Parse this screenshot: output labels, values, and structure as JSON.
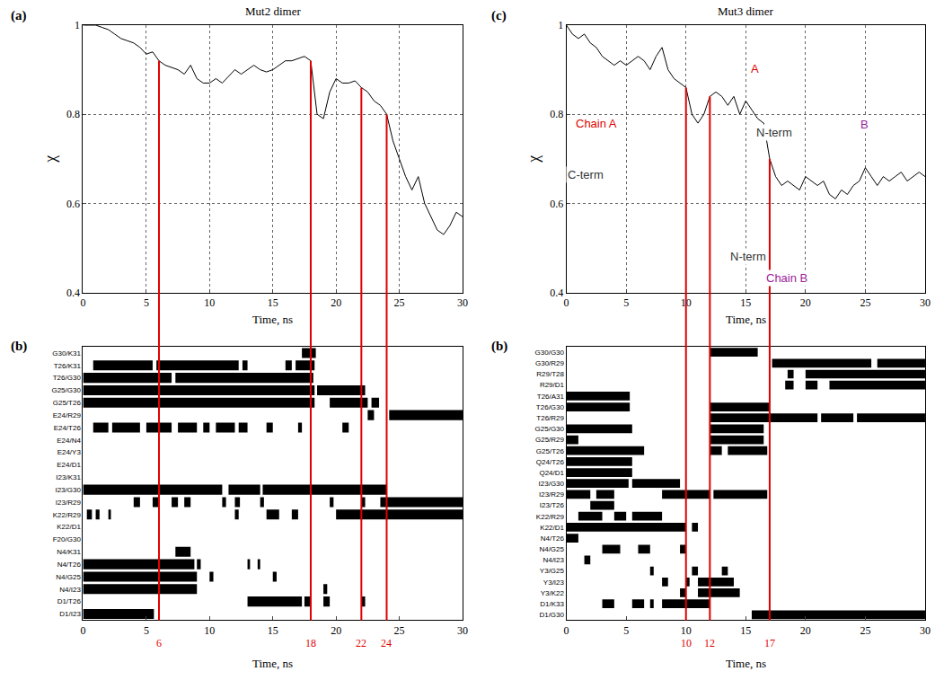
{
  "chart_data": [
    {
      "type": "line",
      "panel": "(a)",
      "title": "Mut2 dimer",
      "x_label": "Time, ns",
      "y_label": "χ",
      "x": [
        0,
        0.5,
        1,
        1.5,
        2,
        2.5,
        3,
        3.5,
        4,
        4.5,
        5,
        5.5,
        6,
        6.5,
        7,
        7.5,
        8,
        8.5,
        9,
        9.5,
        10,
        10.5,
        11,
        11.5,
        12,
        12.5,
        13,
        13.5,
        14,
        14.5,
        15,
        15.5,
        16,
        16.5,
        17,
        17.5,
        18,
        18.5,
        19,
        19.5,
        20,
        20.5,
        21,
        21.5,
        22,
        22.5,
        23,
        23.5,
        24,
        24.5,
        25,
        25.5,
        26,
        26.5,
        27,
        27.5,
        28,
        28.5,
        29,
        29.5,
        30
      ],
      "values": [
        1.0,
        1.0,
        1.0,
        0.995,
        0.99,
        0.98,
        0.97,
        0.965,
        0.96,
        0.95,
        0.935,
        0.94,
        0.92,
        0.91,
        0.905,
        0.9,
        0.89,
        0.91,
        0.88,
        0.87,
        0.87,
        0.88,
        0.87,
        0.885,
        0.9,
        0.89,
        0.9,
        0.91,
        0.9,
        0.895,
        0.9,
        0.91,
        0.92,
        0.92,
        0.925,
        0.93,
        0.92,
        0.8,
        0.79,
        0.85,
        0.88,
        0.87,
        0.87,
        0.875,
        0.86,
        0.85,
        0.83,
        0.82,
        0.8,
        0.74,
        0.7,
        0.66,
        0.63,
        0.66,
        0.6,
        0.57,
        0.54,
        0.53,
        0.55,
        0.58,
        0.57
      ],
      "color": "#000000",
      "xlim": [
        0,
        30
      ],
      "xticks": [
        0,
        5,
        10,
        15,
        20,
        25,
        30
      ],
      "ylim": [
        0.4,
        1
      ],
      "yticks": [
        0.4,
        0.6,
        0.8,
        1
      ],
      "grid": true
    },
    {
      "type": "timeline",
      "panel": "(b)",
      "x_label": "Time, ns",
      "color": "#000000",
      "xlim": [
        0,
        30
      ],
      "xticks": [
        0,
        5,
        10,
        15,
        20,
        25,
        30
      ],
      "markers": {
        "values": [
          6,
          18,
          22,
          24
        ],
        "color": "#e00000"
      },
      "rows": [
        {
          "label": "G30/K31",
          "intervals": [
            [
              17.3,
              18.4
            ]
          ]
        },
        {
          "label": "T26/K31",
          "intervals": [
            [
              0.8,
              5.5
            ],
            [
              5.8,
              12.3
            ],
            [
              12.6,
              13
            ],
            [
              16,
              16.5
            ],
            [
              16.8,
              18.3
            ]
          ]
        },
        {
          "label": "T26/G30",
          "intervals": [
            [
              0,
              7
            ],
            [
              7.3,
              18.2
            ]
          ]
        },
        {
          "label": "G25/G30",
          "intervals": [
            [
              0,
              18.3
            ],
            [
              18.5,
              22.3
            ]
          ]
        },
        {
          "label": "G25/T26",
          "intervals": [
            [
              0,
              18.3
            ],
            [
              19.5,
              22.5
            ],
            [
              22.8,
              23.4
            ]
          ]
        },
        {
          "label": "E24/R29",
          "intervals": [
            [
              22.5,
              23
            ],
            [
              24.2,
              30
            ]
          ]
        },
        {
          "label": "E24/T26",
          "intervals": [
            [
              0.8,
              2
            ],
            [
              2.3,
              4.5
            ],
            [
              5,
              7
            ],
            [
              7.5,
              9
            ],
            [
              9.5,
              10
            ],
            [
              10.5,
              12
            ],
            [
              12.3,
              13
            ],
            [
              14.5,
              15
            ],
            [
              17,
              17.3
            ],
            [
              20.5,
              21
            ]
          ]
        },
        {
          "label": "E24/N4",
          "intervals": []
        },
        {
          "label": "E24/Y3",
          "intervals": []
        },
        {
          "label": "E24/D1",
          "intervals": []
        },
        {
          "label": "I23/K31",
          "intervals": []
        },
        {
          "label": "I23/G30",
          "intervals": [
            [
              0,
              11
            ],
            [
              11.5,
              14
            ],
            [
              14.2,
              24
            ]
          ]
        },
        {
          "label": "I23/R29",
          "intervals": [
            [
              4,
              4.5
            ],
            [
              5.5,
              6
            ],
            [
              7,
              7.5
            ],
            [
              8,
              8.5
            ],
            [
              11,
              11.3
            ],
            [
              12,
              12.4
            ],
            [
              14,
              14.3
            ],
            [
              19.5,
              19.8
            ],
            [
              22,
              22.3
            ],
            [
              23.5,
              30
            ]
          ]
        },
        {
          "label": "K22/R29",
          "intervals": [
            [
              0.3,
              0.7
            ],
            [
              1,
              1.3
            ],
            [
              2,
              2.2
            ],
            [
              12,
              12.3
            ],
            [
              14.5,
              15.5
            ],
            [
              16.5,
              17
            ],
            [
              20,
              30
            ]
          ]
        },
        {
          "label": "K22/D1",
          "intervals": []
        },
        {
          "label": "F20/G30",
          "intervals": []
        },
        {
          "label": "N4/K31",
          "intervals": [
            [
              7.3,
              8.5
            ]
          ]
        },
        {
          "label": "N4/T26",
          "intervals": [
            [
              0,
              8.8
            ],
            [
              9,
              9.3
            ],
            [
              13,
              13.2
            ],
            [
              13.8,
              14
            ]
          ]
        },
        {
          "label": "N4/G25",
          "intervals": [
            [
              0,
              9
            ],
            [
              10,
              10.3
            ],
            [
              15,
              15.3
            ]
          ]
        },
        {
          "label": "N4/I23",
          "intervals": [
            [
              0,
              9
            ],
            [
              19,
              19.3
            ]
          ]
        },
        {
          "label": "D1/T26",
          "intervals": [
            [
              13,
              17.3
            ],
            [
              17.5,
              18
            ],
            [
              19,
              19.5
            ],
            [
              22,
              22.3
            ]
          ]
        },
        {
          "label": "D1/I23",
          "intervals": [
            [
              0,
              5.6
            ]
          ]
        }
      ]
    },
    {
      "type": "line",
      "panel": "(c)",
      "title": "Mut3 dimer",
      "x_label": "Time, ns",
      "y_label": "χ",
      "x": [
        0,
        0.5,
        1,
        1.5,
        2,
        2.5,
        3,
        3.5,
        4,
        4.5,
        5,
        5.5,
        6,
        6.5,
        7,
        7.5,
        8,
        8.5,
        9,
        9.5,
        10,
        10.5,
        11,
        11.5,
        12,
        12.5,
        13,
        13.5,
        14,
        14.5,
        15,
        15.5,
        16,
        16.5,
        17,
        17.5,
        18,
        18.5,
        19,
        19.5,
        20,
        20.5,
        21,
        21.5,
        22,
        22.5,
        23,
        23.5,
        24,
        24.5,
        25,
        25.5,
        26,
        26.5,
        27,
        27.5,
        28,
        28.5,
        29,
        29.5,
        30
      ],
      "values": [
        1.0,
        0.98,
        0.97,
        0.98,
        0.96,
        0.95,
        0.93,
        0.92,
        0.91,
        0.92,
        0.91,
        0.92,
        0.93,
        0.92,
        0.9,
        0.93,
        0.95,
        0.9,
        0.88,
        0.87,
        0.86,
        0.8,
        0.78,
        0.8,
        0.84,
        0.85,
        0.84,
        0.82,
        0.84,
        0.8,
        0.83,
        0.81,
        0.79,
        0.78,
        0.7,
        0.66,
        0.64,
        0.65,
        0.64,
        0.63,
        0.66,
        0.65,
        0.64,
        0.65,
        0.62,
        0.61,
        0.63,
        0.62,
        0.64,
        0.65,
        0.68,
        0.66,
        0.64,
        0.66,
        0.65,
        0.66,
        0.67,
        0.65,
        0.66,
        0.67,
        0.66
      ],
      "color": "#000000",
      "xlim": [
        0,
        30
      ],
      "xticks": [
        0,
        5,
        10,
        15,
        20,
        25,
        30
      ],
      "ylim": [
        0.4,
        1
      ],
      "yticks": [
        0.4,
        0.6,
        0.8,
        1
      ],
      "grid": true,
      "annotations": [
        {
          "text": "A",
          "x": 15.8,
          "y": 0.903,
          "color": "#e00000"
        },
        {
          "text": "B",
          "x": 24.9,
          "y": 0.777,
          "color": "#9b1c9b"
        },
        {
          "text": "N-term",
          "x": 17.4,
          "y": 0.76,
          "color": "#333333"
        },
        {
          "text": "Chain A",
          "x": 2.5,
          "y": 0.78,
          "color": "#e00000"
        },
        {
          "text": "C-term",
          "x": 1.6,
          "y": 0.665,
          "color": "#333333"
        },
        {
          "text": "N-term",
          "x": 15.2,
          "y": 0.48,
          "color": "#333333"
        },
        {
          "text": "Chain B",
          "x": 18.4,
          "y": 0.433,
          "color": "#9b1c9b"
        }
      ]
    },
    {
      "type": "timeline",
      "panel": "(b)",
      "x_label": "Time, ns",
      "color": "#000000",
      "xlim": [
        0,
        30
      ],
      "xticks": [
        0,
        5,
        10,
        15,
        20,
        25,
        30
      ],
      "markers": {
        "values": [
          10,
          12,
          17
        ],
        "color": "#e00000"
      },
      "rows": [
        {
          "label": "G30/G30",
          "intervals": [
            [
              12,
              16
            ]
          ]
        },
        {
          "label": "G30/R29",
          "intervals": [
            [
              17.2,
              25.5
            ],
            [
              26,
              30
            ]
          ]
        },
        {
          "label": "R29/T28",
          "intervals": [
            [
              18.5,
              19
            ],
            [
              20,
              30
            ]
          ]
        },
        {
          "label": "R29/D1",
          "intervals": [
            [
              18.3,
              19
            ],
            [
              20,
              21
            ],
            [
              22,
              30
            ]
          ]
        },
        {
          "label": "T26/A31",
          "intervals": [
            [
              0,
              5.3
            ]
          ]
        },
        {
          "label": "T26/G30",
          "intervals": [
            [
              0,
              5.3
            ],
            [
              12,
              17
            ]
          ]
        },
        {
          "label": "T26/R29",
          "intervals": [
            [
              12,
              21
            ],
            [
              21.3,
              24
            ],
            [
              24.3,
              30
            ]
          ]
        },
        {
          "label": "G25/G30",
          "intervals": [
            [
              0,
              5.5
            ],
            [
              12,
              16.5
            ]
          ]
        },
        {
          "label": "G25/R29",
          "intervals": [
            [
              0,
              1
            ],
            [
              12,
              16.5
            ]
          ]
        },
        {
          "label": "G25/T26",
          "intervals": [
            [
              0,
              6.5
            ],
            [
              12,
              13
            ],
            [
              13.5,
              16.8
            ]
          ]
        },
        {
          "label": "Q24/T26",
          "intervals": [
            [
              0,
              5.5
            ]
          ]
        },
        {
          "label": "Q24/D1",
          "intervals": [
            [
              0,
              5.5
            ]
          ]
        },
        {
          "label": "I23/G30",
          "intervals": [
            [
              0,
              5.2
            ],
            [
              5.5,
              9.5
            ]
          ]
        },
        {
          "label": "I23/R29",
          "intervals": [
            [
              0,
              2
            ],
            [
              2.5,
              4
            ],
            [
              8,
              12
            ],
            [
              12.3,
              16.8
            ]
          ]
        },
        {
          "label": "I23/T26",
          "intervals": [
            [
              2,
              4
            ]
          ]
        },
        {
          "label": "K22/R29",
          "intervals": [
            [
              1,
              3
            ],
            [
              4,
              5
            ],
            [
              5.5,
              8
            ]
          ]
        },
        {
          "label": "K22/D1",
          "intervals": [
            [
              0,
              10
            ],
            [
              10.5,
              11
            ]
          ]
        },
        {
          "label": "N4/T26",
          "intervals": [
            [
              0,
              1
            ]
          ]
        },
        {
          "label": "N4/G25",
          "intervals": [
            [
              3,
              4.5
            ],
            [
              6,
              7
            ],
            [
              9.5,
              10
            ]
          ]
        },
        {
          "label": "N4/I23",
          "intervals": [
            [
              1.5,
              2
            ]
          ]
        },
        {
          "label": "Y3/G25",
          "intervals": [
            [
              7,
              7.3
            ],
            [
              10.5,
              11
            ],
            [
              13,
              13.5
            ]
          ]
        },
        {
          "label": "Y3/I23",
          "intervals": [
            [
              8,
              8.5
            ],
            [
              10,
              10.3
            ],
            [
              11,
              14
            ]
          ]
        },
        {
          "label": "Y3/K22",
          "intervals": [
            [
              9.5,
              10
            ],
            [
              11,
              14.5
            ]
          ]
        },
        {
          "label": "D1/K33",
          "intervals": [
            [
              3,
              4
            ],
            [
              5.5,
              6.5
            ],
            [
              7,
              7.3
            ],
            [
              8,
              12
            ]
          ]
        },
        {
          "label": "D1/G30",
          "intervals": [
            [
              15.5,
              30
            ]
          ]
        }
      ]
    }
  ]
}
